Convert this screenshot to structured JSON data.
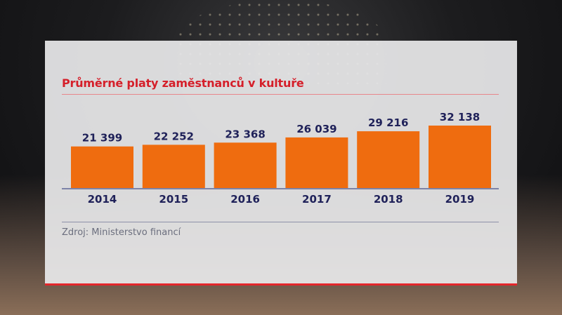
{
  "chart_data": {
    "type": "bar",
    "title": "Průměrné platy zaměstnanců v kultuře",
    "categories": [
      "2014",
      "2015",
      "2016",
      "2017",
      "2018",
      "2019"
    ],
    "values": [
      21399,
      22252,
      23368,
      26039,
      29216,
      32138
    ],
    "data_labels": [
      "21 399",
      "22 252",
      "23 368",
      "26 039",
      "29 216",
      "32 138"
    ],
    "xlabel": "",
    "ylabel": "",
    "grid": false,
    "bar_color": "#ef6c0f",
    "label_color": "#1f2159",
    "title_color": "#d51f2a"
  },
  "source": "Zdroj: Ministerstvo financí"
}
